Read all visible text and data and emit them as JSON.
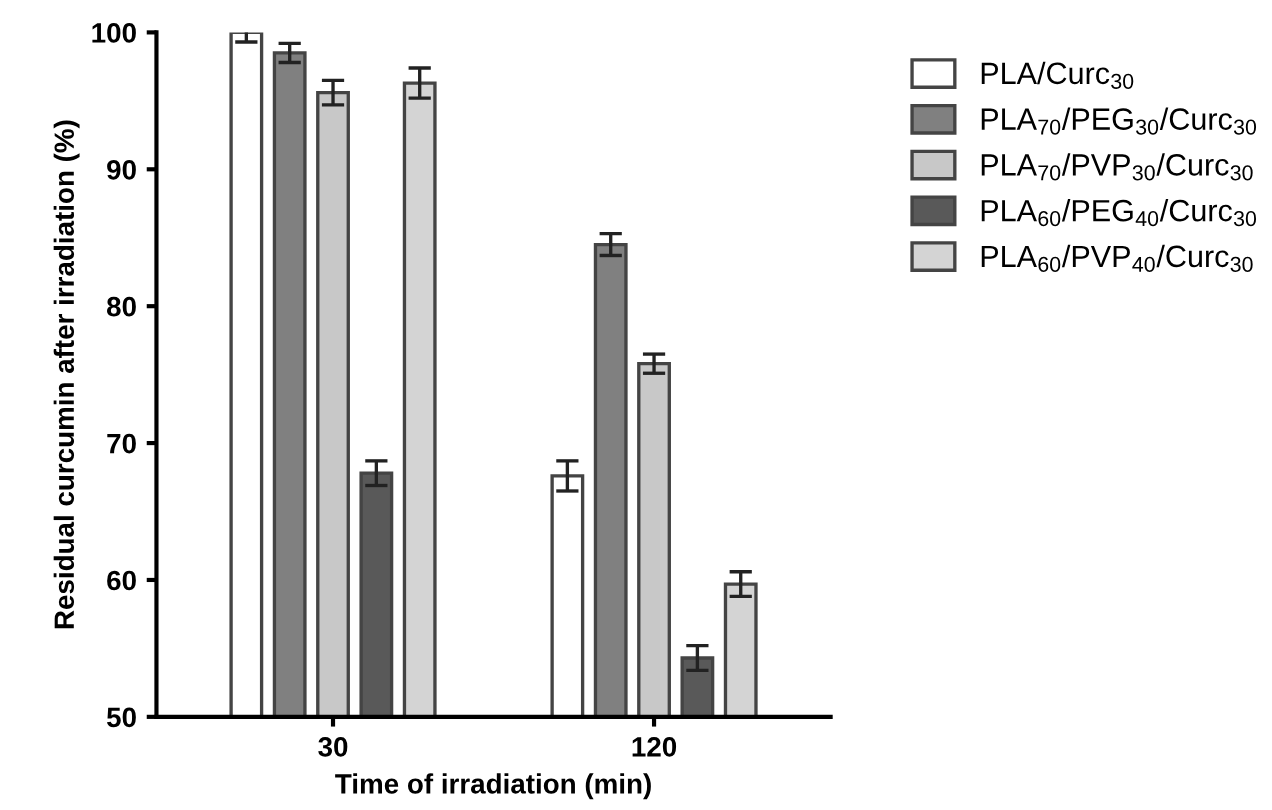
{
  "chart_data": {
    "type": "bar",
    "xlabel": "Time of irradiation (min)",
    "ylabel": "Residual curcumin after irradiation (%)",
    "categories": [
      "30",
      "120"
    ],
    "series": [
      {
        "name": "PLA/Curc$_{30}$",
        "color": "#ffffff",
        "values": [
          100,
          67.6
        ],
        "errors": [
          0.7,
          1.1
        ]
      },
      {
        "name": "PLA$_{70}$/PEG$_{30}$/Curc$_{30}$",
        "color": "#808080",
        "values": [
          98.5,
          84.5
        ],
        "errors": [
          0.7,
          0.8
        ]
      },
      {
        "name": "PLA$_{70}$/PVP$_{30}$/Curc$_{30}$",
        "color": "#c8c8c8",
        "values": [
          95.6,
          75.8
        ],
        "errors": [
          0.9,
          0.7
        ]
      },
      {
        "name": "PLA$_{60}$/PEG$_{40}$/Curc$_{30}$",
        "color": "#595959",
        "values": [
          67.8,
          54.3
        ],
        "errors": [
          0.9,
          0.9
        ]
      },
      {
        "name": "PLA$_{60}$/PVP$_{40}$/Curc$_{30}$",
        "color": "#d4d4d4",
        "values": [
          96.3,
          59.7
        ],
        "errors": [
          1.1,
          0.9
        ]
      }
    ],
    "ylim": [
      50,
      100
    ],
    "yticks": [
      50,
      60,
      70,
      80,
      90,
      100
    ],
    "grid": false,
    "legend": "top right"
  }
}
